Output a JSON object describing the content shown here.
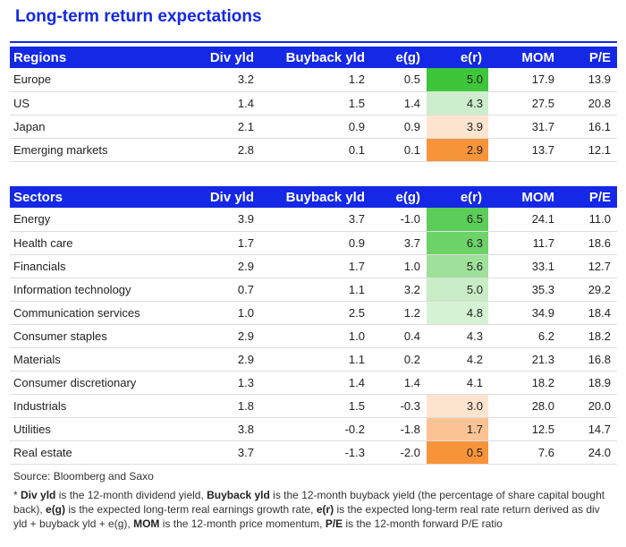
{
  "title": "Long-term return expectations",
  "colors": {
    "brand": "#1428e6",
    "er_high": "#3ec63a",
    "er_low": "#f7943a"
  },
  "headers": [
    "Div yld",
    "Buyback yld",
    "e(g)",
    "e(r)",
    "MOM",
    "P/E"
  ],
  "regions": {
    "label": "Regions",
    "rows": [
      {
        "name": "Europe",
        "div": "3.2",
        "buyback": "1.2",
        "eg": "0.5",
        "er": "5.0",
        "mom": "17.9",
        "pe": "13.9",
        "er_color": "#3ec63a"
      },
      {
        "name": "US",
        "div": "1.4",
        "buyback": "1.5",
        "eg": "1.4",
        "er": "4.3",
        "mom": "27.5",
        "pe": "20.8",
        "er_color": "#cdeecc"
      },
      {
        "name": "Japan",
        "div": "2.1",
        "buyback": "0.9",
        "eg": "0.9",
        "er": "3.9",
        "mom": "31.7",
        "pe": "16.1",
        "er_color": "#fde4cf"
      },
      {
        "name": "Emerging markets",
        "div": "2.8",
        "buyback": "0.1",
        "eg": "0.1",
        "er": "2.9",
        "mom": "13.7",
        "pe": "12.1",
        "er_color": "#f7943a"
      }
    ]
  },
  "sectors": {
    "label": "Sectors",
    "rows": [
      {
        "name": "Energy",
        "div": "3.9",
        "buyback": "3.7",
        "eg": "-1.0",
        "er": "6.5",
        "mom": "24.1",
        "pe": "11.0",
        "er_color": "#5ccd58"
      },
      {
        "name": "Health care",
        "div": "1.7",
        "buyback": "0.9",
        "eg": "3.7",
        "er": "6.3",
        "mom": "11.7",
        "pe": "18.6",
        "er_color": "#6dd268"
      },
      {
        "name": "Financials",
        "div": "2.9",
        "buyback": "1.7",
        "eg": "1.0",
        "er": "5.6",
        "mom": "33.1",
        "pe": "12.7",
        "er_color": "#9fe09b"
      },
      {
        "name": "Information technology",
        "div": "0.7",
        "buyback": "1.1",
        "eg": "3.2",
        "er": "5.0",
        "mom": "35.3",
        "pe": "29.2",
        "er_color": "#c8edc6"
      },
      {
        "name": "Communication services",
        "div": "1.0",
        "buyback": "2.5",
        "eg": "1.2",
        "er": "4.8",
        "mom": "34.9",
        "pe": "18.4",
        "er_color": "#d6f2d4"
      },
      {
        "name": "Consumer staples",
        "div": "2.9",
        "buyback": "1.0",
        "eg": "0.4",
        "er": "4.3",
        "mom": "6.2",
        "pe": "18.2",
        "er_color": "#ffffff"
      },
      {
        "name": "Materials",
        "div": "2.9",
        "buyback": "1.1",
        "eg": "0.2",
        "er": "4.2",
        "mom": "21.3",
        "pe": "16.8",
        "er_color": "#ffffff"
      },
      {
        "name": "Consumer discretionary",
        "div": "1.3",
        "buyback": "1.4",
        "eg": "1.4",
        "er": "4.1",
        "mom": "18.2",
        "pe": "18.9",
        "er_color": "#ffffff"
      },
      {
        "name": "Industrials",
        "div": "1.8",
        "buyback": "1.5",
        "eg": "-0.3",
        "er": "3.0",
        "mom": "28.0",
        "pe": "20.0",
        "er_color": "#fde4cf"
      },
      {
        "name": "Utilities",
        "div": "3.8",
        "buyback": "-0.2",
        "eg": "-1.8",
        "er": "1.7",
        "mom": "12.5",
        "pe": "14.7",
        "er_color": "#fbc394"
      },
      {
        "name": "Real estate",
        "div": "3.7",
        "buyback": "-1.3",
        "eg": "-2.0",
        "er": "0.5",
        "mom": "7.6",
        "pe": "24.0",
        "er_color": "#f7943a"
      }
    ]
  },
  "source": "Source: Bloomberg and Saxo",
  "footnote": {
    "p1": "* ",
    "b1": "Div yld",
    "p2": " is the 12-month dividend yield, ",
    "b2": "Buyback yld",
    "p3": " is the 12-month buyback yield (the percentage of share capital bought back), ",
    "b3": "e(g)",
    "p4": " is the expected long-term real earnings growth rate, ",
    "b4": "e(r)",
    "p5": " is the expected long-term real rate return derived as div yld + buyback yld + e(g), ",
    "b5": "MOM",
    "p6": " is the 12-month price momentum, ",
    "b6": "P/E",
    "p7": " is the 12-month forward P/E ratio"
  }
}
